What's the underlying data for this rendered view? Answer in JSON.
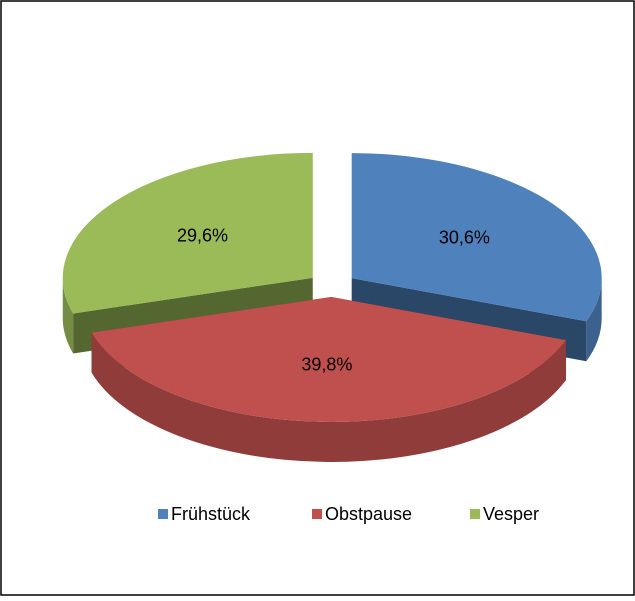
{
  "chart_data": {
    "type": "pie3d",
    "categories": [
      "Frühstück",
      "Obstpause",
      "Vesper"
    ],
    "values": [
      30.6,
      39.8,
      29.6
    ],
    "value_labels": [
      "30,6%",
      "39,8%",
      "29,6%"
    ],
    "colors": [
      "#4f81bd",
      "#c0504d",
      "#9bbb59"
    ],
    "legend": "bottom"
  }
}
